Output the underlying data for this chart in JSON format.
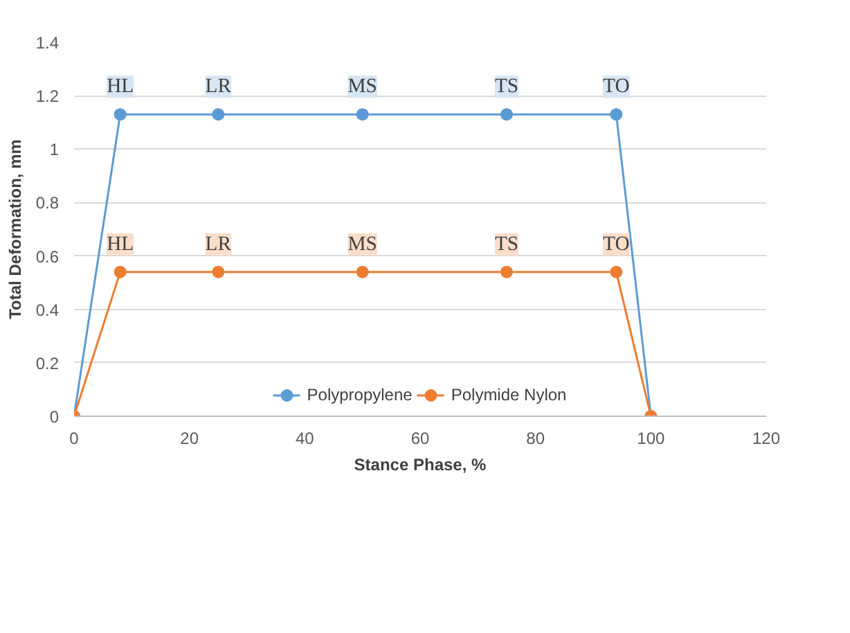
{
  "chart_data": {
    "type": "line",
    "xlabel": "Stance Phase, %",
    "ylabel": "Total Deformation, mm",
    "xlim": [
      0,
      120
    ],
    "xticks": [
      0,
      20,
      40,
      60,
      80,
      100,
      120
    ],
    "ylim": [
      0,
      1.4
    ],
    "yticks": [
      0,
      0.2,
      0.4,
      0.6,
      0.8,
      1,
      1.2,
      1.4
    ],
    "grid": "y",
    "legend": "bottom",
    "marker": "circle",
    "line_style": "solid",
    "series": [
      {
        "name": "Polypropylene",
        "color": "#5b9bd5",
        "x": [
          0,
          8,
          25,
          50,
          75,
          94,
          100
        ],
        "values": [
          0,
          1.13,
          1.13,
          1.13,
          1.13,
          1.13,
          0
        ]
      },
      {
        "name": "Polymide Nylon",
        "color": "#ed7d31",
        "x": [
          0,
          8,
          25,
          50,
          75,
          94,
          100
        ],
        "values": [
          0,
          0.54,
          0.54,
          0.54,
          0.54,
          0.54,
          0
        ]
      }
    ],
    "annotations": [
      {
        "text": "HL",
        "x": 8,
        "y": 1.13
      },
      {
        "text": "LR",
        "x": 25,
        "y": 1.13
      },
      {
        "text": "MS",
        "x": 50,
        "y": 1.13
      },
      {
        "text": "TS",
        "x": 75,
        "y": 1.13
      },
      {
        "text": "TO",
        "x": 94,
        "y": 1.13
      },
      {
        "text": "HL",
        "x": 8,
        "y": 0.54
      },
      {
        "text": "LR",
        "x": 25,
        "y": 0.54
      },
      {
        "text": "MS",
        "x": 50,
        "y": 0.54
      },
      {
        "text": "TS",
        "x": 75,
        "y": 0.54
      },
      {
        "text": "TO",
        "x": 94,
        "y": 0.54
      }
    ]
  }
}
